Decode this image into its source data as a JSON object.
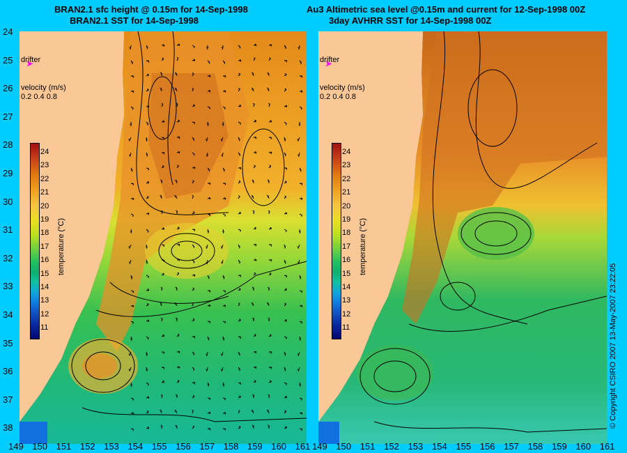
{
  "titles": {
    "left_line1": "BRAN2.1 sfc height @ 0.15m for 14-Sep-1998",
    "left_line2": "BRAN2.1 SST for 14-Sep-1998",
    "right_line1": "Au3 Altimetric sea level  @0.15m and current for 12-Sep-1998 00Z",
    "right_line2": "3day AVHRR SST for 14-Sep-1998 00Z"
  },
  "y_ticks": [
    "24",
    "25",
    "26",
    "27",
    "28",
    "29",
    "30",
    "31",
    "32",
    "33",
    "34",
    "35",
    "36",
    "37",
    "38"
  ],
  "x_ticks_left": [
    "149",
    "150",
    "151",
    "152",
    "153",
    "154",
    "155",
    "156",
    "157",
    "158",
    "159",
    "160",
    "161"
  ],
  "x_ticks_right": [
    "149",
    "150",
    "151",
    "152",
    "153",
    "154",
    "155",
    "156",
    "157",
    "158",
    "159",
    "160",
    "161"
  ],
  "drifter_label": "drifter",
  "velocity": {
    "label": "velocity (m/s)",
    "scale": "0.2 0.4 0.8"
  },
  "colorbar": {
    "ticks": [
      "24",
      "23",
      "22",
      "21",
      "20",
      "19",
      "18",
      "17",
      "16",
      "15",
      "14",
      "13",
      "12",
      "11"
    ],
    "label": "temperature (°C)"
  },
  "copyright": "© Copyright CSIRO 2007    13-May-2007 23:22:05",
  "colors": {
    "background": "#00ccff",
    "land": "#f9c896",
    "warm": "#e07a10",
    "cool": "#20c060",
    "drifter": "#ff00ff"
  }
}
